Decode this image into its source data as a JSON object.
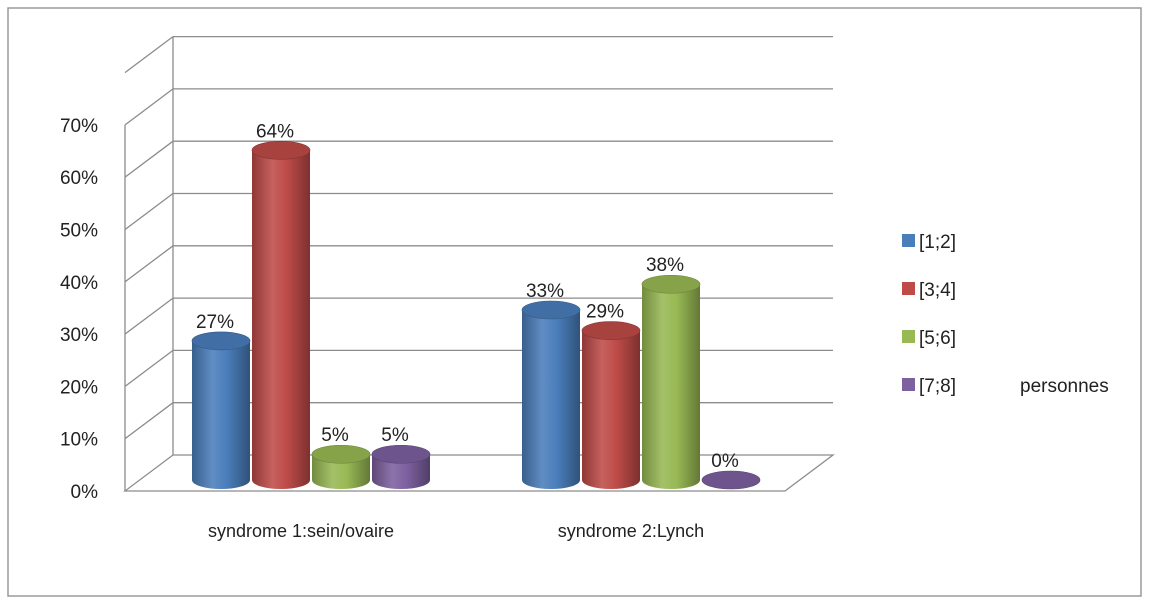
{
  "chart_data": {
    "type": "bar",
    "categories": [
      "syndrome 1:sein/ovaire",
      "syndrome 2:Lynch"
    ],
    "series": [
      {
        "name": "[1;2]",
        "values": [
          27,
          33
        ],
        "labels": [
          "27%",
          "33%"
        ]
      },
      {
        "name": "[3;4]",
        "values": [
          64,
          29
        ],
        "labels": [
          "64%",
          "29%"
        ]
      },
      {
        "name": "[5;6]",
        "values": [
          5,
          38
        ],
        "labels": [
          "5%",
          "38%"
        ]
      },
      {
        "name": "[7;8]",
        "values": [
          5,
          0
        ],
        "labels": [
          "5%",
          "0%"
        ]
      }
    ],
    "yticks": [
      "0%",
      "10%",
      "20%",
      "30%",
      "40%",
      "50%",
      "60%",
      "70%"
    ],
    "ylim": [
      0,
      70
    ],
    "title": "",
    "xlabel": "",
    "ylabel": "",
    "legend_note": "personnes",
    "legend_position": "right",
    "grid": true,
    "style": "3d-cylinder",
    "colors": [
      "#4a7ebb",
      "#be4b48",
      "#98b954",
      "#7d60a0"
    ]
  }
}
